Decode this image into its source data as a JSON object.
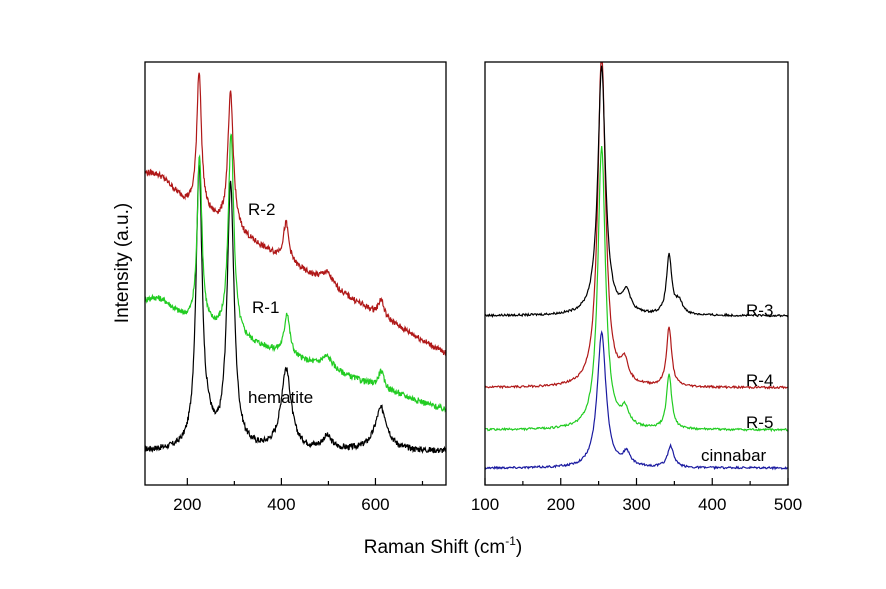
{
  "figure": {
    "ylabel": "Intensity (a.u.)",
    "xlabel_main": "Raman Shift (cm",
    "xlabel_sup": "-1",
    "xlabel_close": ")"
  },
  "chart_data": [
    {
      "type": "line",
      "title": "",
      "xlabel": "Raman Shift (cm-1)",
      "ylabel": "Intensity (a.u.)",
      "xlim": [
        110,
        750
      ],
      "ylim": [
        0,
        100
      ],
      "xticks": [
        200,
        400,
        600
      ],
      "xtick_labels": [
        "200",
        "400",
        "600"
      ],
      "grid": false,
      "series": [
        {
          "name": "hematite",
          "label": "hematite",
          "color": "#000000",
          "baseline": 8,
          "slope": 0.0,
          "shoulder": 0,
          "peaks": [
            [
              225,
              66,
              8
            ],
            [
              246,
              3,
              10
            ],
            [
              292,
              62,
              9
            ],
            [
              410,
              19,
              13
            ],
            [
              497,
              3,
              12
            ],
            [
              612,
              10,
              16
            ]
          ]
        },
        {
          "name": "R-1",
          "label": "R-1",
          "color": "#22cc22",
          "baseline": 42,
          "slope": -0.038,
          "shoulder": 3,
          "peaks": [
            [
              226,
              40,
              6
            ],
            [
              293,
              48,
              7
            ],
            [
              412,
              10,
              7
            ],
            [
              497,
              3,
              15
            ],
            [
              612,
              4,
              7
            ]
          ]
        },
        {
          "name": "R-2",
          "label": "R-2",
          "color": "#b01818",
          "baseline": 72,
          "slope": -0.064,
          "shoulder": 3,
          "peaks": [
            [
              225,
              33,
              6
            ],
            [
              292,
              32,
              7
            ],
            [
              410,
              9,
              7
            ],
            [
              497,
              3,
              15
            ],
            [
              612,
              4,
              7
            ]
          ]
        }
      ]
    },
    {
      "type": "line",
      "title": "",
      "xlabel": "Raman Shift (cm-1)",
      "ylabel": "",
      "xlim": [
        100,
        500
      ],
      "ylim": [
        0,
        100
      ],
      "xticks": [
        100,
        200,
        300,
        400,
        500
      ],
      "xtick_labels": [
        "100",
        "200",
        "300",
        "400",
        "500"
      ],
      "grid": false,
      "series": [
        {
          "name": "cinnabar",
          "label": "cinnabar",
          "color": "#1a1aa0",
          "baseline": 4,
          "peaks": [
            [
              254,
              32,
              7
            ],
            [
              287,
              3,
              6
            ],
            [
              345,
              5,
              5
            ]
          ]
        },
        {
          "name": "R-5",
          "label": "R-5",
          "color": "#22cc22",
          "baseline": 13,
          "peaks": [
            [
              254,
              67,
              6
            ],
            [
              285,
              4,
              6
            ],
            [
              343,
              13,
              4
            ]
          ]
        },
        {
          "name": "R-4",
          "label": "R-4",
          "color": "#b01818",
          "baseline": 23,
          "peaks": [
            [
              254,
              80,
              6
            ],
            [
              284,
              5,
              6
            ],
            [
              343,
              14,
              4
            ]
          ]
        },
        {
          "name": "R-3",
          "label": "R-3",
          "color": "#000000",
          "baseline": 40,
          "peaks": [
            [
              254,
              59,
              6
            ],
            [
              287,
              5,
              6
            ],
            [
              343,
              14,
              4
            ],
            [
              356,
              3,
              6
            ]
          ]
        }
      ]
    }
  ]
}
